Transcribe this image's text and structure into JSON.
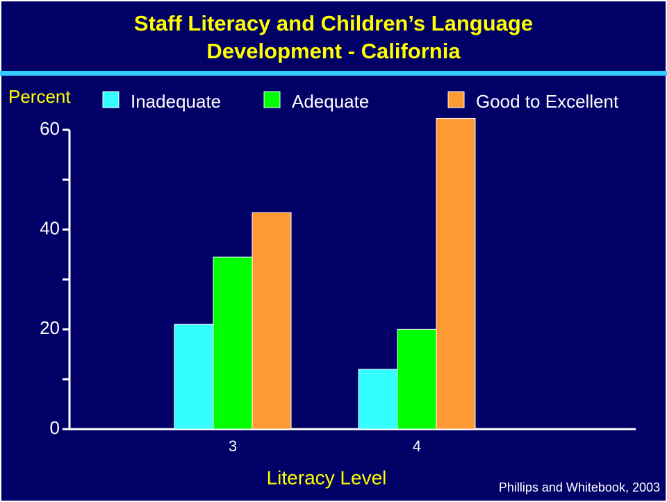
{
  "chart_data": {
    "type": "bar",
    "title": [
      "Staff Literacy and Children’s Language",
      "Development - California"
    ],
    "y_label": "Percent",
    "x_label": "Literacy Level",
    "source": "Phillips and Whitebook, 2003",
    "categories": [
      "3",
      "4"
    ],
    "series": [
      {
        "name": "Inadequate",
        "color": "#33ffff",
        "values": [
          21,
          12
        ]
      },
      {
        "name": "Adequate",
        "color": "#00ff00",
        "values": [
          34.5,
          20
        ]
      },
      {
        "name": "Good to Excellent",
        "color": "#ff9933",
        "values": [
          43.4,
          62.3
        ]
      }
    ],
    "ylim": [
      0,
      60
    ],
    "yticks": [
      0,
      20,
      40,
      60
    ],
    "yticks_minor": [
      10,
      30,
      50
    ]
  }
}
